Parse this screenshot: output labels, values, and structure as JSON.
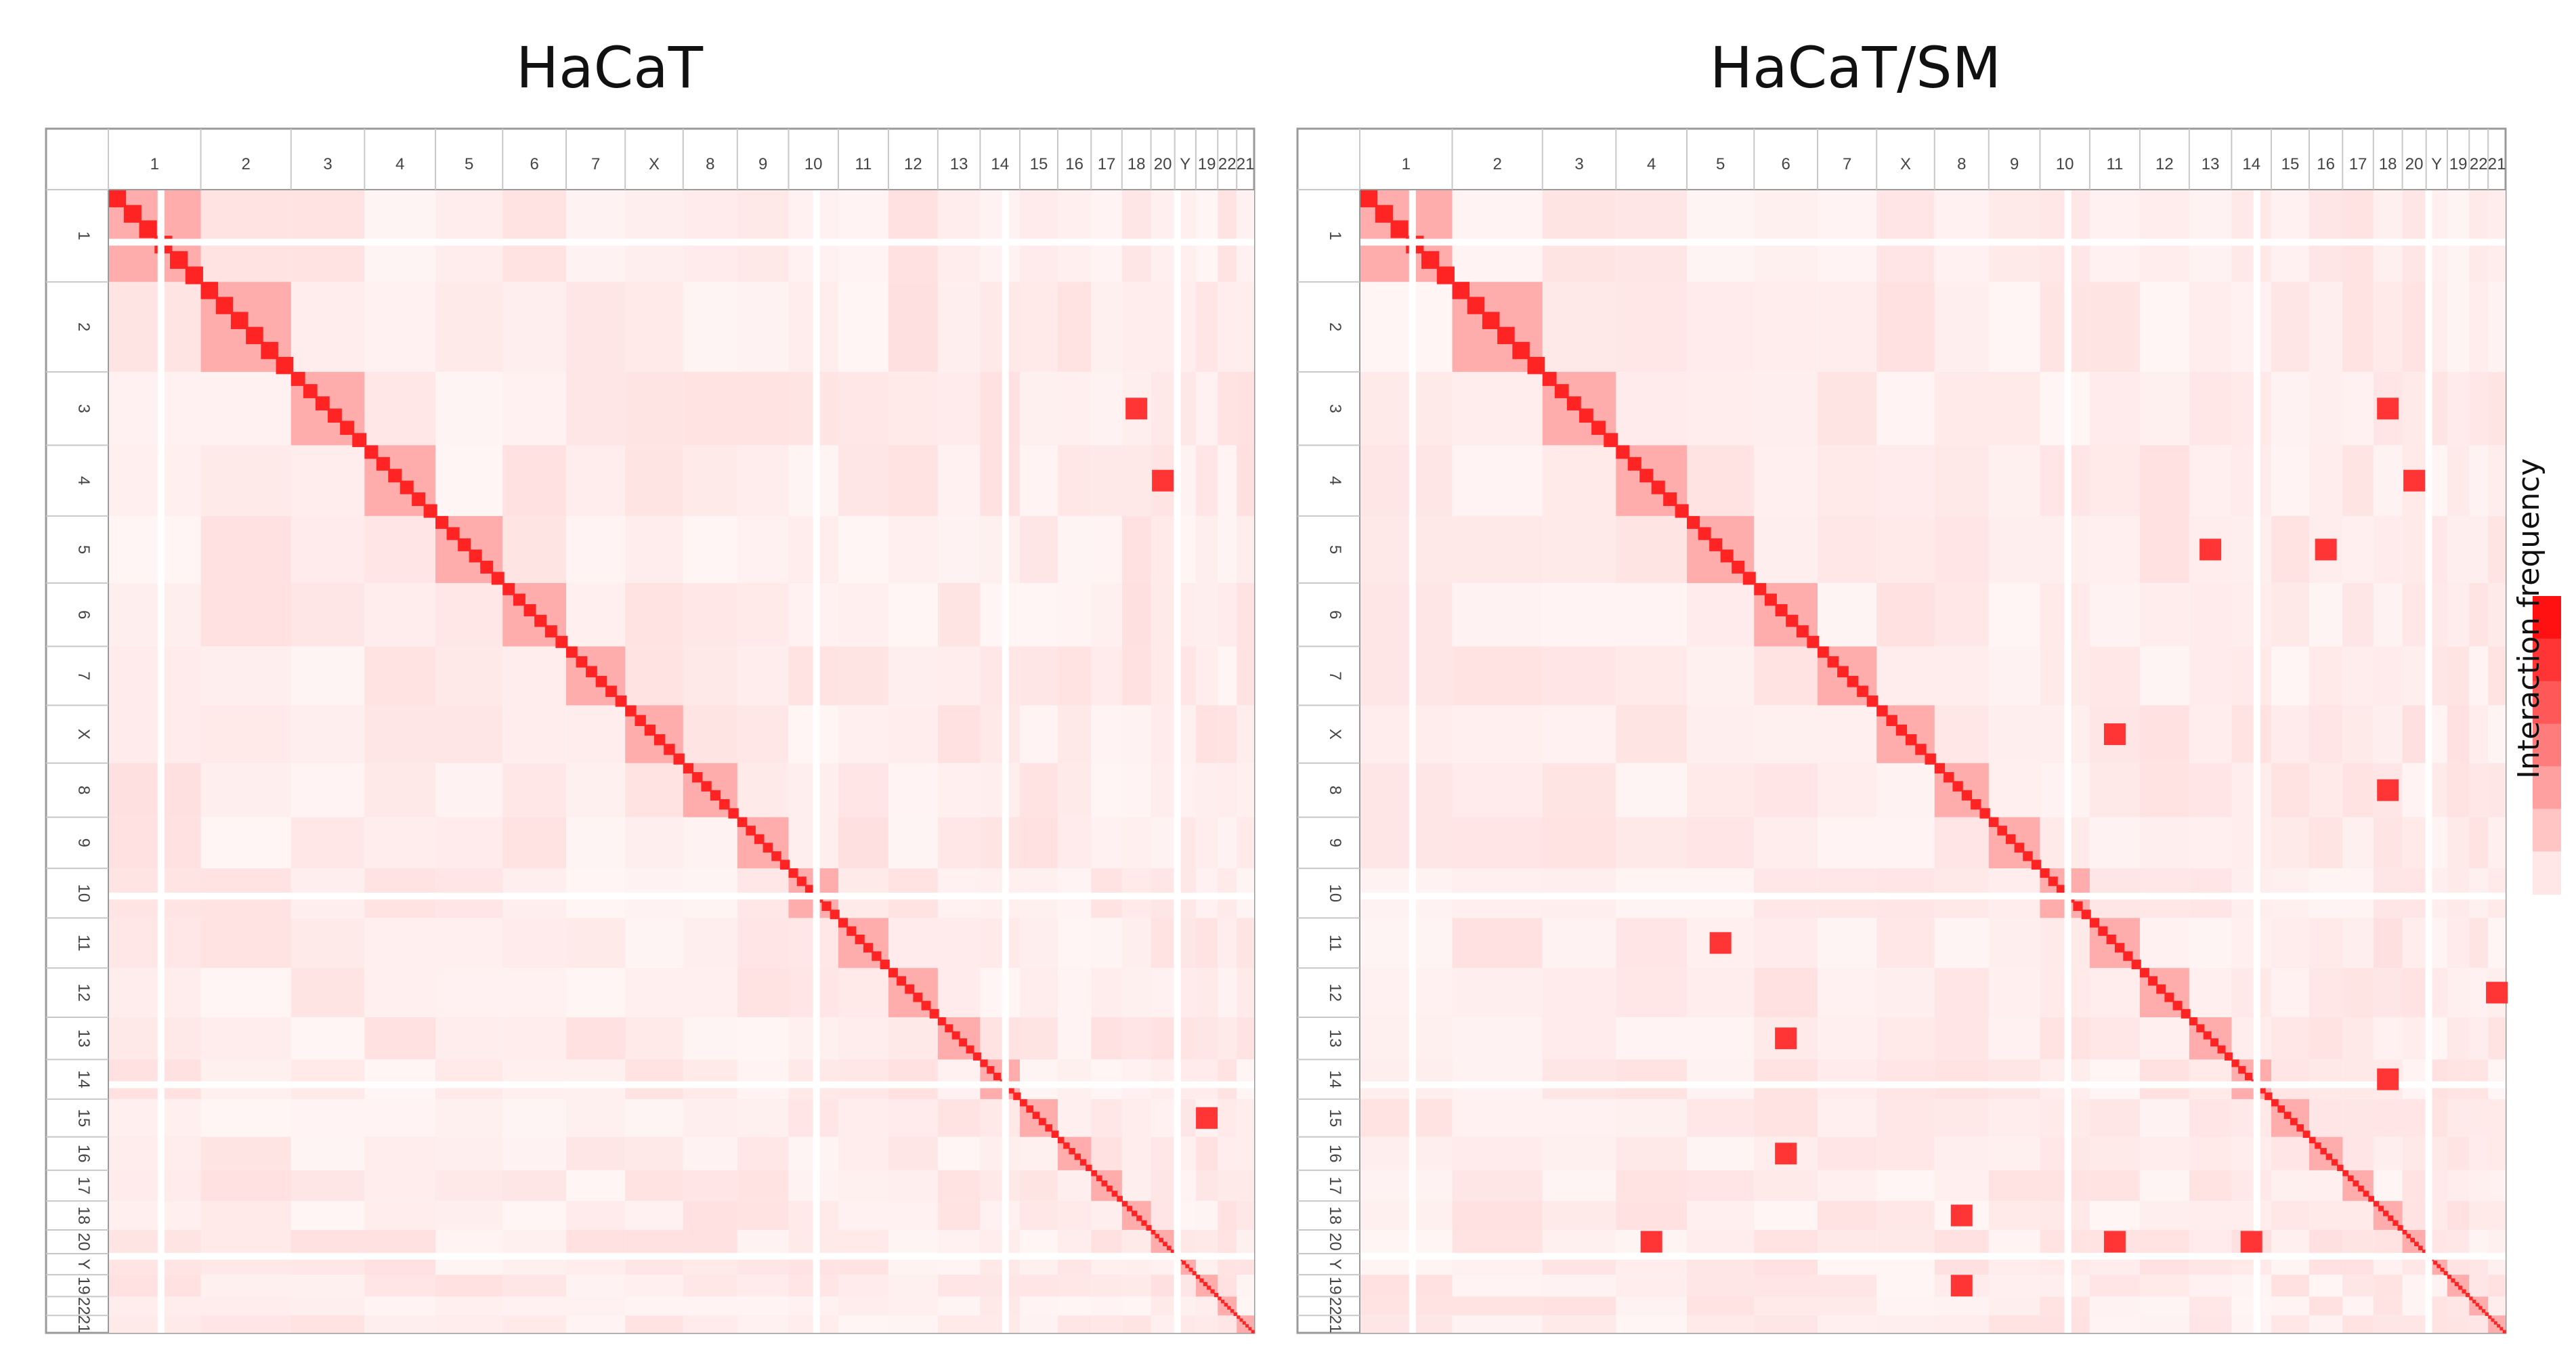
{
  "chart_data": [
    {
      "type": "heatmap",
      "title": "HaCaT",
      "colorbar_label": "Interaction frequency",
      "chromosomes": [
        "1",
        "2",
        "3",
        "4",
        "5",
        "6",
        "7",
        "X",
        "8",
        "9",
        "10",
        "11",
        "12",
        "13",
        "14",
        "15",
        "16",
        "17",
        "18",
        "20",
        "Y",
        "19",
        "22",
        "21"
      ],
      "chromosome_relative_size": [
        249,
        243,
        198,
        191,
        181,
        171,
        159,
        156,
        146,
        138,
        134,
        135,
        133,
        114,
        107,
        102,
        90,
        83,
        78,
        64,
        57,
        59,
        51,
        47
      ],
      "diagonal_blocks": "strong intra-chromosomal interactions along the diagonal for every chromosome",
      "off_diagonal_hotspots": [
        {
          "chrom_a": "3",
          "chrom_b": "18"
        },
        {
          "chrom_a": "4",
          "chrom_b": "20"
        },
        {
          "chrom_a": "15",
          "chrom_b": "19"
        }
      ]
    },
    {
      "type": "heatmap",
      "title": "HaCaT/SM",
      "colorbar_label": "Interaction frequency",
      "chromosomes": [
        "1",
        "2",
        "3",
        "4",
        "5",
        "6",
        "7",
        "X",
        "8",
        "9",
        "10",
        "11",
        "12",
        "13",
        "14",
        "15",
        "16",
        "17",
        "18",
        "20",
        "Y",
        "19",
        "22",
        "21"
      ],
      "chromosome_relative_size": [
        249,
        243,
        198,
        191,
        181,
        171,
        159,
        156,
        146,
        138,
        134,
        135,
        133,
        114,
        107,
        102,
        90,
        83,
        78,
        64,
        57,
        59,
        51,
        47
      ],
      "diagonal_blocks": "strong intra-chromosomal interactions along the diagonal for every chromosome",
      "off_diagonal_hotspots": [
        {
          "chrom_a": "3",
          "chrom_b": "18"
        },
        {
          "chrom_a": "4",
          "chrom_b": "20"
        },
        {
          "chrom_a": "5",
          "chrom_b": "13"
        },
        {
          "chrom_a": "5",
          "chrom_b": "16"
        },
        {
          "chrom_a": "X",
          "chrom_b": "11"
        },
        {
          "chrom_a": "8",
          "chrom_b": "18"
        },
        {
          "chrom_a": "11",
          "chrom_b": "5"
        },
        {
          "chrom_a": "12",
          "chrom_b": "21"
        },
        {
          "chrom_a": "13",
          "chrom_b": "6"
        },
        {
          "chrom_a": "14",
          "chrom_b": "18"
        },
        {
          "chrom_a": "16",
          "chrom_b": "6"
        },
        {
          "chrom_a": "18",
          "chrom_b": "8"
        },
        {
          "chrom_a": "20",
          "chrom_b": "4"
        },
        {
          "chrom_a": "20",
          "chrom_b": "14"
        },
        {
          "chrom_a": "20",
          "chrom_b": "11"
        },
        {
          "chrom_a": "19",
          "chrom_b": "8"
        }
      ]
    }
  ],
  "colors": {
    "high": "#ee1111",
    "low": "#fff3f3",
    "frame": "#9a9a9a"
  },
  "colorbar_steps": [
    1.0,
    0.85,
    0.7,
    0.55,
    0.4,
    0.25,
    0.1
  ]
}
